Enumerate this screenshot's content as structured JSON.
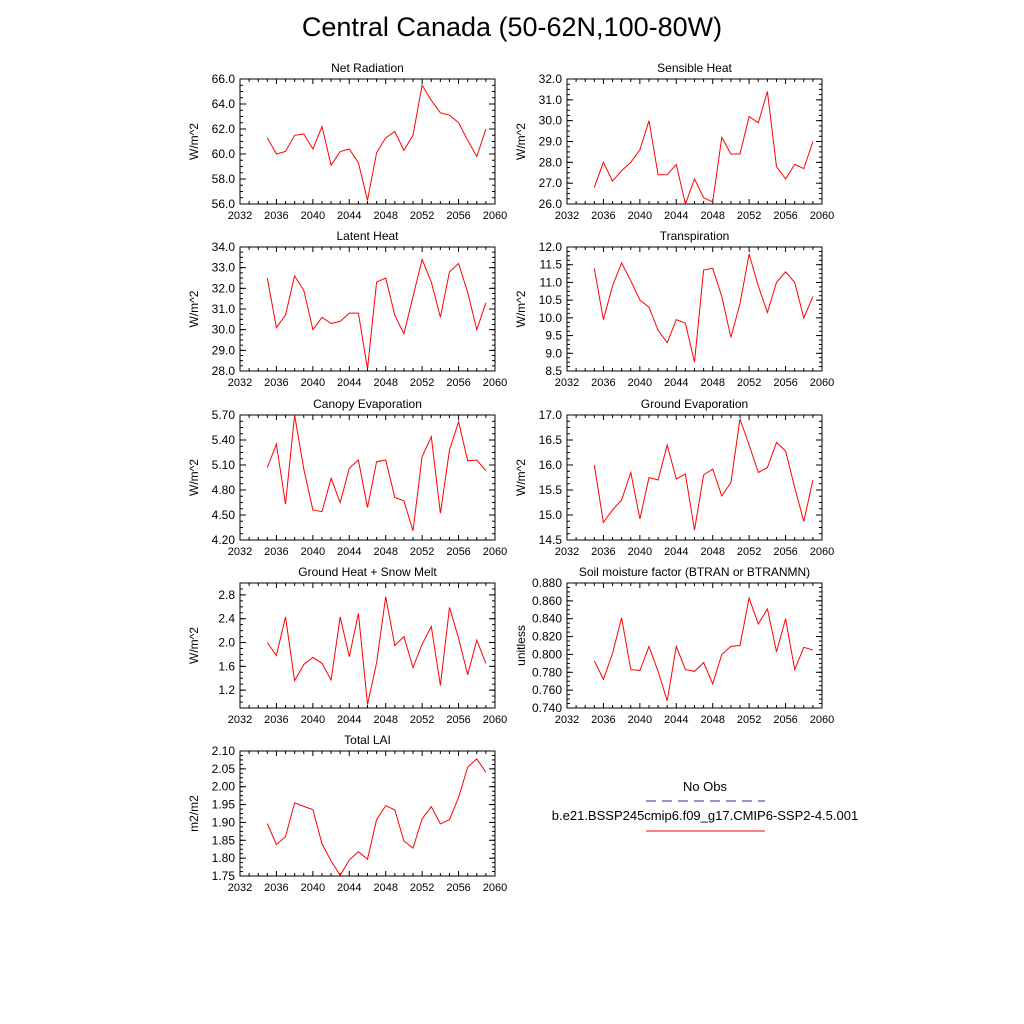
{
  "title": "Central Canada (50-62N,100-80W)",
  "colors": {
    "line": "#ff0000",
    "obs": "#2b2b8f",
    "axis": "#000000"
  },
  "legend": {
    "obs_label": "No Obs",
    "model_label": "b.e21.BSSP245cmip6.f09_g17.CMIP6-SSP2-4.5.001"
  },
  "x_ticks": [
    "2032",
    "2036",
    "2040",
    "2044",
    "2048",
    "2052",
    "2056",
    "2060"
  ],
  "chart_data": [
    {
      "type": "line",
      "title": "Net Radiation",
      "ylabel": "W/m^2",
      "xlim": [
        2032,
        2060
      ],
      "ylim": [
        56.0,
        66.0
      ],
      "yticks": [
        "56.0",
        "58.0",
        "60.0",
        "62.0",
        "64.0",
        "66.0"
      ],
      "x": [
        2035,
        2036,
        2037,
        2038,
        2039,
        2040,
        2041,
        2042,
        2043,
        2044,
        2045,
        2046,
        2047,
        2048,
        2049,
        2050,
        2051,
        2052,
        2053,
        2054,
        2055,
        2056,
        2057,
        2058,
        2059
      ],
      "series": [
        {
          "values": [
            61.3,
            60.0,
            60.2,
            61.5,
            61.6,
            60.4,
            62.2,
            59.1,
            60.2,
            60.4,
            59.3,
            56.3,
            60.1,
            61.3,
            61.8,
            60.3,
            61.5,
            65.5,
            64.3,
            63.3,
            63.1,
            62.5,
            61.1,
            59.8,
            62.0
          ]
        }
      ]
    },
    {
      "type": "line",
      "title": "Sensible Heat",
      "ylabel": "W/m^2",
      "xlim": [
        2032,
        2060
      ],
      "ylim": [
        26.0,
        32.0
      ],
      "yticks": [
        "26.0",
        "27.0",
        "28.0",
        "29.0",
        "30.0",
        "31.0",
        "32.0"
      ],
      "x": [
        2035,
        2036,
        2037,
        2038,
        2039,
        2040,
        2041,
        2042,
        2043,
        2044,
        2045,
        2046,
        2047,
        2048,
        2049,
        2050,
        2051,
        2052,
        2053,
        2054,
        2055,
        2056,
        2057,
        2058,
        2059
      ],
      "series": [
        {
          "values": [
            26.8,
            28.0,
            27.1,
            27.6,
            28.0,
            28.6,
            30.0,
            27.4,
            27.4,
            27.9,
            26.0,
            27.2,
            26.3,
            26.1,
            29.2,
            28.4,
            28.4,
            30.2,
            29.9,
            31.4,
            27.8,
            27.2,
            27.9,
            27.7,
            29.0
          ]
        }
      ]
    },
    {
      "type": "line",
      "title": "Latent Heat",
      "ylabel": "W/m^2",
      "xlim": [
        2032,
        2060
      ],
      "ylim": [
        28.0,
        34.0
      ],
      "yticks": [
        "28.0",
        "29.0",
        "30.0",
        "31.0",
        "32.0",
        "33.0",
        "34.0"
      ],
      "x": [
        2035,
        2036,
        2037,
        2038,
        2039,
        2040,
        2041,
        2042,
        2043,
        2044,
        2045,
        2046,
        2047,
        2048,
        2049,
        2050,
        2051,
        2052,
        2053,
        2054,
        2055,
        2056,
        2057,
        2058,
        2059
      ],
      "series": [
        {
          "values": [
            32.5,
            30.1,
            30.7,
            32.6,
            31.9,
            30.0,
            30.6,
            30.3,
            30.4,
            30.8,
            30.8,
            28.1,
            32.3,
            32.5,
            30.7,
            29.8,
            31.6,
            33.4,
            32.3,
            30.6,
            32.8,
            33.2,
            31.8,
            30.0,
            31.3
          ]
        }
      ]
    },
    {
      "type": "line",
      "title": "Transpiration",
      "ylabel": "W/m^2",
      "xlim": [
        2032,
        2060
      ],
      "ylim": [
        8.5,
        12.0
      ],
      "yticks": [
        "8.5",
        "9.0",
        "9.5",
        "10.0",
        "10.5",
        "11.0",
        "11.5",
        "12.0"
      ],
      "x": [
        2035,
        2036,
        2037,
        2038,
        2039,
        2040,
        2041,
        2042,
        2043,
        2044,
        2045,
        2046,
        2047,
        2048,
        2049,
        2050,
        2051,
        2052,
        2053,
        2054,
        2055,
        2056,
        2057,
        2058,
        2059
      ],
      "series": [
        {
          "values": [
            11.4,
            9.95,
            10.9,
            11.55,
            11.05,
            10.5,
            10.3,
            9.65,
            9.3,
            9.95,
            9.85,
            8.75,
            11.35,
            11.4,
            10.6,
            9.45,
            10.4,
            11.8,
            10.9,
            10.15,
            11.0,
            11.3,
            11.0,
            10.0,
            10.6
          ]
        }
      ]
    },
    {
      "type": "line",
      "title": "Canopy Evaporation",
      "ylabel": "W/m^2",
      "xlim": [
        2032,
        2060
      ],
      "ylim": [
        4.2,
        5.7
      ],
      "yticks": [
        "4.20",
        "4.50",
        "4.80",
        "5.10",
        "5.40",
        "5.70"
      ],
      "x": [
        2035,
        2036,
        2037,
        2038,
        2039,
        2040,
        2041,
        2042,
        2043,
        2044,
        2045,
        2046,
        2047,
        2048,
        2049,
        2050,
        2051,
        2052,
        2053,
        2054,
        2055,
        2056,
        2057,
        2058,
        2059
      ],
      "series": [
        {
          "values": [
            5.07,
            5.35,
            4.63,
            5.7,
            5.05,
            4.56,
            4.54,
            4.94,
            4.65,
            5.06,
            5.16,
            4.59,
            5.14,
            5.16,
            4.71,
            4.67,
            4.31,
            5.2,
            5.44,
            4.52,
            5.28,
            5.62,
            5.15,
            5.16,
            5.03
          ]
        }
      ]
    },
    {
      "type": "line",
      "title": "Ground Evaporation",
      "ylabel": "W/m^2",
      "xlim": [
        2032,
        2060
      ],
      "ylim": [
        14.5,
        17.0
      ],
      "yticks": [
        "14.5",
        "15.0",
        "15.5",
        "16.0",
        "16.5",
        "17.0"
      ],
      "x": [
        2035,
        2036,
        2037,
        2038,
        2039,
        2040,
        2041,
        2042,
        2043,
        2044,
        2045,
        2046,
        2047,
        2048,
        2049,
        2050,
        2051,
        2052,
        2053,
        2054,
        2055,
        2056,
        2057,
        2058,
        2059
      ],
      "series": [
        {
          "values": [
            16.0,
            14.85,
            15.1,
            15.3,
            15.85,
            14.92,
            15.75,
            15.7,
            16.4,
            15.72,
            15.82,
            14.7,
            15.8,
            15.92,
            15.38,
            15.65,
            16.92,
            16.4,
            15.85,
            15.95,
            16.45,
            16.28,
            15.55,
            14.87,
            15.7
          ]
        }
      ]
    },
    {
      "type": "line",
      "title": "Ground Heat + Snow Melt",
      "ylabel": "W/m^2",
      "xlim": [
        2032,
        2060
      ],
      "ylim": [
        0.9,
        3.0
      ],
      "yticks": [
        "1.2",
        "1.6",
        "2.0",
        "2.4",
        "2.8"
      ],
      "x": [
        2035,
        2036,
        2037,
        2038,
        2039,
        2040,
        2041,
        2042,
        2043,
        2044,
        2045,
        2046,
        2047,
        2048,
        2049,
        2050,
        2051,
        2052,
        2053,
        2054,
        2055,
        2056,
        2057,
        2058,
        2059
      ],
      "series": [
        {
          "values": [
            2.0,
            1.78,
            2.43,
            1.36,
            1.63,
            1.75,
            1.65,
            1.37,
            2.43,
            1.76,
            2.49,
            0.96,
            1.66,
            2.77,
            1.95,
            2.1,
            1.58,
            1.97,
            2.27,
            1.28,
            2.59,
            2.07,
            1.46,
            2.04,
            1.65
          ]
        }
      ]
    },
    {
      "type": "line",
      "title": "Soil moisture factor (BTRAN or BTRANMN)",
      "ylabel": "unitless",
      "xlim": [
        2032,
        2060
      ],
      "ylim": [
        0.74,
        0.88
      ],
      "yticks": [
        "0.740",
        "0.760",
        "0.780",
        "0.800",
        "0.820",
        "0.840",
        "0.860",
        "0.880"
      ],
      "x": [
        2035,
        2036,
        2037,
        2038,
        2039,
        2040,
        2041,
        2042,
        2043,
        2044,
        2045,
        2046,
        2047,
        2048,
        2049,
        2050,
        2051,
        2052,
        2053,
        2054,
        2055,
        2056,
        2057,
        2058,
        2059
      ],
      "series": [
        {
          "values": [
            0.793,
            0.772,
            0.801,
            0.841,
            0.783,
            0.782,
            0.809,
            0.781,
            0.748,
            0.809,
            0.783,
            0.781,
            0.791,
            0.767,
            0.8,
            0.809,
            0.81,
            0.863,
            0.834,
            0.851,
            0.803,
            0.84,
            0.783,
            0.808,
            0.805
          ]
        }
      ]
    },
    {
      "type": "line",
      "title": "Total LAI",
      "ylabel": "m2/m2",
      "xlim": [
        2032,
        2060
      ],
      "ylim": [
        1.75,
        2.1
      ],
      "yticks": [
        "1.75",
        "1.80",
        "1.85",
        "1.90",
        "1.95",
        "2.00",
        "2.05",
        "2.10"
      ],
      "x": [
        2035,
        2036,
        2037,
        2038,
        2039,
        2040,
        2041,
        2042,
        2043,
        2044,
        2045,
        2046,
        2047,
        2048,
        2049,
        2050,
        2051,
        2052,
        2053,
        2054,
        2055,
        2056,
        2057,
        2058,
        2059
      ],
      "series": [
        {
          "values": [
            1.897,
            1.838,
            1.86,
            1.955,
            1.945,
            1.936,
            1.84,
            1.792,
            1.752,
            1.795,
            1.818,
            1.797,
            1.908,
            1.947,
            1.935,
            1.848,
            1.828,
            1.91,
            1.944,
            1.896,
            1.908,
            1.97,
            2.055,
            2.078,
            2.04
          ]
        }
      ]
    }
  ]
}
